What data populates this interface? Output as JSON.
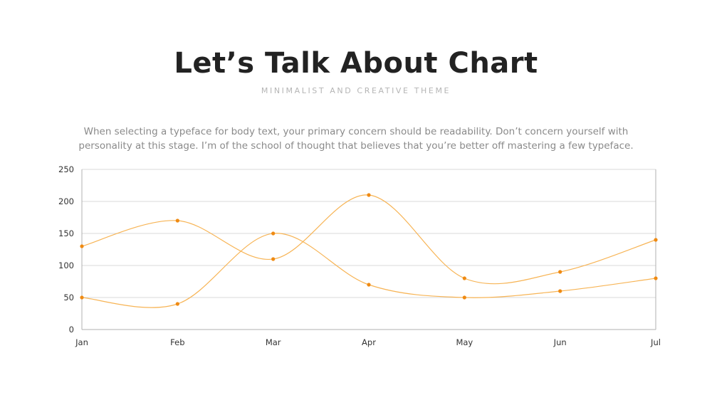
{
  "header": {
    "title": "Let’s Talk About Chart",
    "subtitle": "MINIMALIST AND CREATIVE THEME"
  },
  "description": {
    "line1": "When selecting a typeface for body text, your primary concern should be readability. Don’t concern yourself with",
    "line2": "personality at this stage. I’m of the school of thought that believes that you’re better off mastering a few typeface."
  },
  "colors": {
    "line": "#f7b455",
    "marker": "#ef8a12",
    "grid": "#d9d9d9",
    "axis": "#b0b0b0"
  },
  "chart_data": {
    "type": "line",
    "smooth": true,
    "categories": [
      "Jan",
      "Feb",
      "Mar",
      "Apr",
      "May",
      "Jun",
      "Jul"
    ],
    "series": [
      {
        "values": [
          130,
          170,
          110,
          210,
          80,
          90,
          140
        ]
      },
      {
        "values": [
          50,
          40,
          150,
          70,
          50,
          60,
          80
        ]
      }
    ],
    "ylim": [
      0,
      250
    ],
    "yticks": [
      "250",
      "200",
      "150",
      "100",
      "50",
      "0"
    ],
    "grid": true,
    "legend": false,
    "xlabel": "",
    "ylabel": ""
  }
}
